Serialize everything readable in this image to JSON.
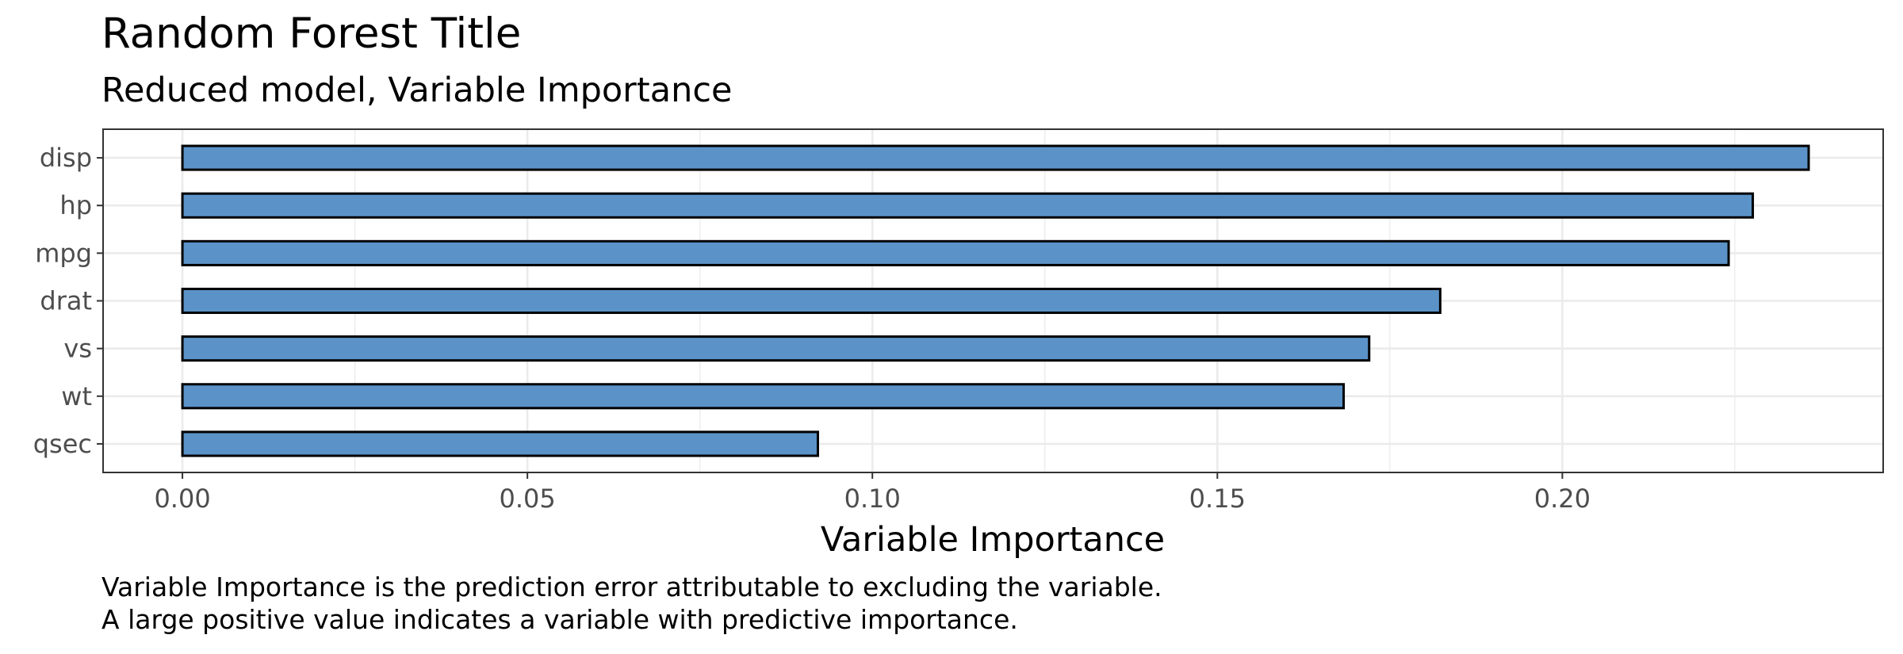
{
  "chart_data": {
    "type": "bar",
    "orientation": "horizontal",
    "title": "Random Forest Title",
    "subtitle": "Reduced model, Variable Importance",
    "xlabel": "Variable Importance",
    "ylabel": "",
    "categories": [
      "disp",
      "hp",
      "mpg",
      "drat",
      "vs",
      "wt",
      "qsec"
    ],
    "values": [
      0.2357,
      0.2276,
      0.2241,
      0.1823,
      0.172,
      0.1683,
      0.0921
    ],
    "xlim": [
      -0.0115,
      0.2465
    ],
    "x_ticks": [
      0.0,
      0.05,
      0.1,
      0.15,
      0.2
    ],
    "x_tick_labels": [
      "0.00",
      "0.05",
      "0.10",
      "0.15",
      "0.20"
    ],
    "caption_lines": [
      "Variable Importance is the prediction error attributable to excluding the variable.",
      "A large positive value indicates a variable with predictive importance."
    ],
    "grid": true,
    "legend": "none",
    "colors": {
      "bar_fill": "#5b93c8",
      "bar_stroke": "#000000",
      "grid": "#ebebeb",
      "panel_border": "#333333"
    }
  }
}
